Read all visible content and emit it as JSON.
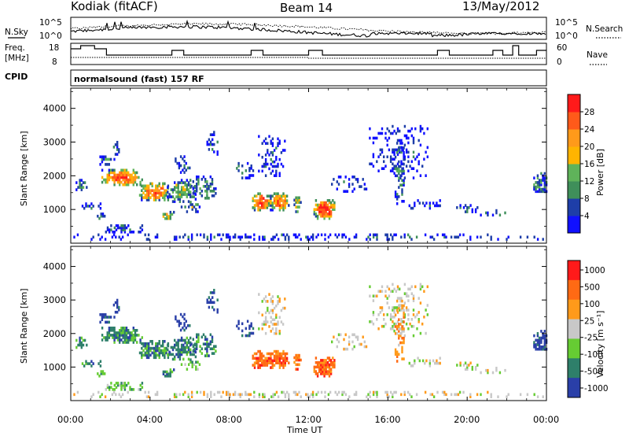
{
  "header": {
    "station": "Kodiak (fitACF)",
    "beam": "Beam 14",
    "date": "13/May/2012"
  },
  "sky_panel": {
    "left_label": "N.Sky",
    "right_label": "N.Search",
    "left_ticks": [
      "10^5",
      "10^0"
    ],
    "right_ticks": [
      "10^5",
      "10^0"
    ]
  },
  "freq_panel": {
    "left_label_1": "Freq.",
    "left_label_2": "[MHz]",
    "left_ticks": [
      "18",
      "8"
    ],
    "right_label": "Nave",
    "right_ticks": [
      "60",
      "0"
    ]
  },
  "cpid_panel": {
    "label": "CPID",
    "mode_text": "normalsound (fast) 157 RF"
  },
  "chart_data": [
    {
      "type": "heatmap",
      "name": "power",
      "ylabel": "Slant Range [km]",
      "yticks": [
        "1000",
        "2000",
        "3000",
        "4000"
      ],
      "ylim": [
        0,
        4600
      ],
      "colorbar_label": "Power [dB]",
      "colorbar_ticks": [
        "4",
        "8",
        "12",
        "16",
        "20",
        "24",
        "28"
      ],
      "colors": {
        "high": "#ff1a1a",
        "orange_red": "#ff5a1a",
        "orange": "#ff9a1a",
        "yellow_orange": "#ffb400",
        "green": "#5fb35a",
        "dark_green": "#3f8f5a",
        "blue": "#1e3ea8",
        "bright_blue": "#1010ff"
      }
    },
    {
      "type": "heatmap",
      "name": "velocity",
      "ylabel": "Slant Range [km]",
      "yticks": [
        "1000",
        "2000",
        "3000",
        "4000"
      ],
      "ylim": [
        0,
        4600
      ],
      "colorbar_label": "Velocity [m s⁻¹]",
      "colorbar_ticks": [
        "1000",
        "500",
        "100",
        "25",
        "-25",
        "-100",
        "-500",
        "-1000"
      ],
      "colors": {
        "neg_fast": "#2a3fa8",
        "neg_med": "#2e7f6a",
        "neg_slow": "#66cc33",
        "zero": "#c8c8c8",
        "pos_slow": "#ff9a1a",
        "pos_med": "#ff6a14",
        "pos_fast": "#ff1a1a"
      }
    }
  ],
  "x_axis": {
    "ticks": [
      "00:00",
      "04:00",
      "08:00",
      "12:00",
      "16:00",
      "20:00",
      "00:00"
    ],
    "label": "Time UT",
    "xlim_hours": [
      0,
      24
    ]
  }
}
